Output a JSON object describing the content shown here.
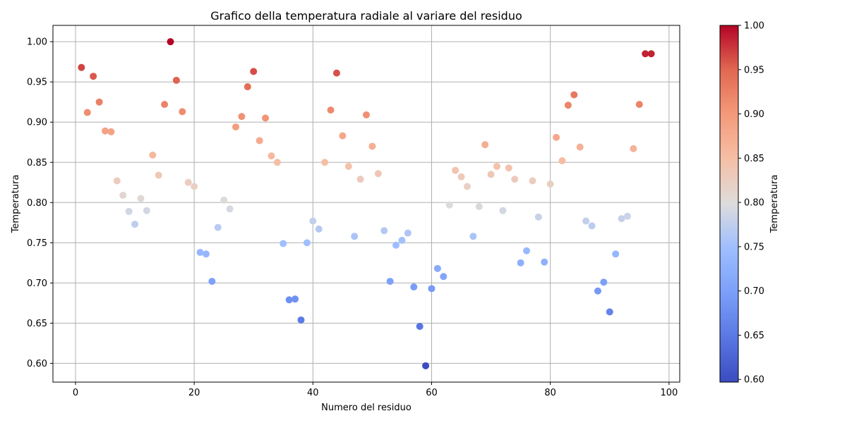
{
  "chart_data": {
    "type": "scatter",
    "title": "Grafico della temperatura radiale al variare del residuo",
    "xlabel": "Numero del residuo",
    "ylabel": "Temperatura",
    "xlim": [
      -3.8,
      101.8
    ],
    "ylim": [
      0.5767,
      1.0203
    ],
    "xticks": [
      0,
      20,
      40,
      60,
      80,
      100
    ],
    "yticks": [
      0.6,
      0.65,
      0.7,
      0.75,
      0.8,
      0.85,
      0.9,
      0.95,
      1.0
    ],
    "grid": true,
    "colormap": "coolwarm",
    "colorbar": {
      "label": "Temperatura",
      "range": [
        0.597,
        1.0
      ],
      "ticks": [
        0.6,
        0.65,
        0.7,
        0.75,
        0.8,
        0.85,
        0.9,
        0.95,
        1.0
      ]
    },
    "x": [
      1,
      2,
      3,
      4,
      5,
      6,
      7,
      8,
      9,
      10,
      11,
      12,
      13,
      14,
      15,
      16,
      17,
      18,
      19,
      20,
      21,
      22,
      23,
      24,
      25,
      26,
      27,
      28,
      29,
      30,
      31,
      32,
      33,
      34,
      35,
      36,
      37,
      38,
      39,
      40,
      41,
      42,
      43,
      44,
      45,
      46,
      47,
      48,
      49,
      50,
      51,
      52,
      53,
      54,
      55,
      56,
      57,
      58,
      59,
      60,
      61,
      62,
      63,
      64,
      65,
      66,
      67,
      68,
      69,
      70,
      71,
      72,
      73,
      74,
      75,
      76,
      77,
      78,
      79,
      80,
      81,
      82,
      83,
      84,
      85,
      86,
      87,
      88,
      89,
      90,
      91,
      92,
      93,
      94,
      95,
      96,
      97
    ],
    "y": [
      0.968,
      0.912,
      0.957,
      0.925,
      0.889,
      0.888,
      0.827,
      0.809,
      0.789,
      0.773,
      0.805,
      0.79,
      0.859,
      0.834,
      0.922,
      1.0,
      0.952,
      0.913,
      0.825,
      0.82,
      0.738,
      0.736,
      0.702,
      0.769,
      0.803,
      0.792,
      0.894,
      0.907,
      0.944,
      0.963,
      0.877,
      0.905,
      0.858,
      0.85,
      0.749,
      0.679,
      0.68,
      0.654,
      0.75,
      0.777,
      0.767,
      0.85,
      0.915,
      0.961,
      0.883,
      0.845,
      0.758,
      0.829,
      0.909,
      0.87,
      0.836,
      0.765,
      0.702,
      0.747,
      0.753,
      0.762,
      0.695,
      0.646,
      0.597,
      0.693,
      0.718,
      0.708,
      0.797,
      0.84,
      0.832,
      0.82,
      0.758,
      0.795,
      0.872,
      0.835,
      0.845,
      0.79,
      0.843,
      0.829,
      0.725,
      0.74,
      0.827,
      0.782,
      0.726,
      0.823,
      0.881,
      0.852,
      0.921,
      0.934,
      0.869,
      0.777,
      0.771,
      0.69,
      0.701,
      0.664,
      0.736,
      0.78,
      0.783,
      0.867,
      0.922,
      0.985,
      0.985
    ]
  }
}
